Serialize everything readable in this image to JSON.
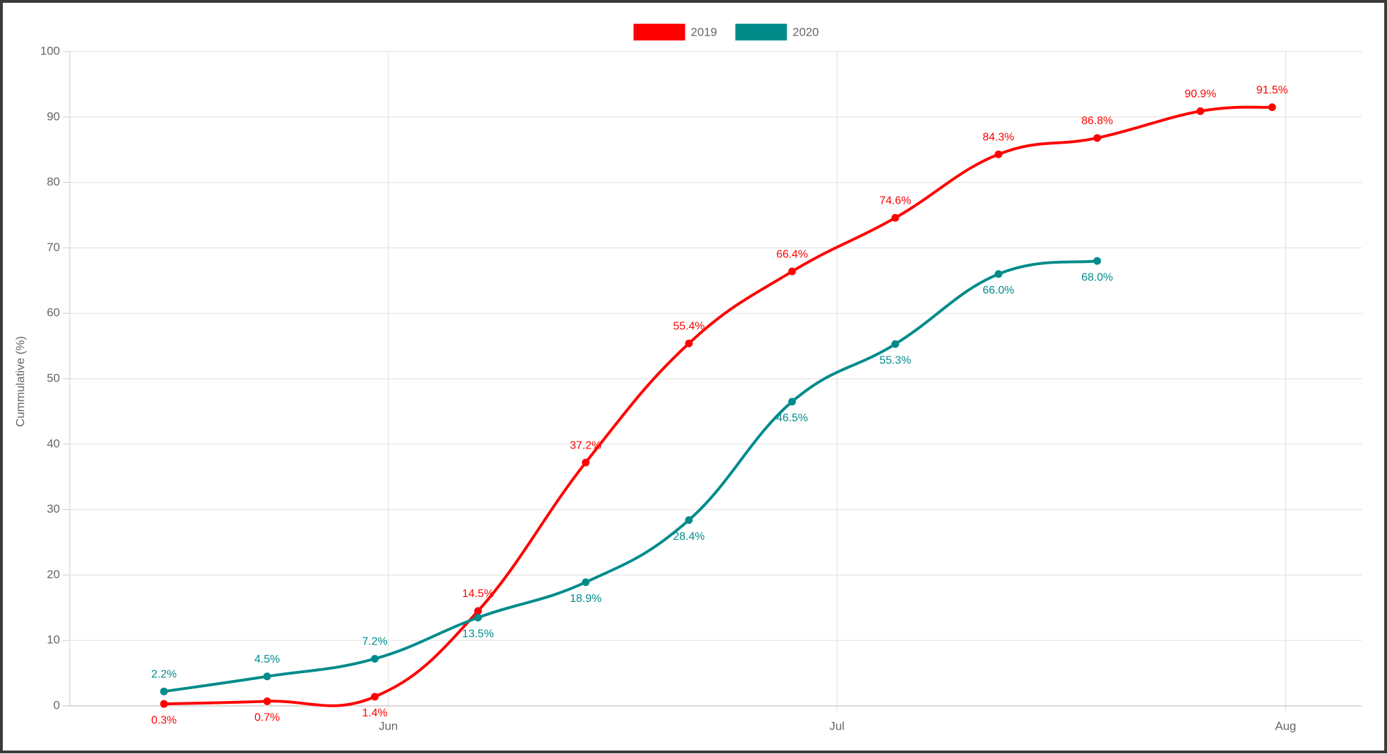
{
  "chart_data": {
    "type": "line",
    "y_label": "Cummulative (%)",
    "x": [
      5.5,
      5.73,
      5.97,
      6.2,
      6.44,
      6.67,
      6.9,
      7.13,
      7.36,
      7.58,
      7.81,
      7.97
    ],
    "xlim": [
      5.29,
      8.17
    ],
    "xticks": [
      {
        "value": 6,
        "label": "Jun"
      },
      {
        "value": 7,
        "label": "Jul"
      },
      {
        "value": 8,
        "label": "Aug"
      }
    ],
    "ylim": [
      0,
      100
    ],
    "yticks": [
      0,
      10,
      20,
      30,
      40,
      50,
      60,
      70,
      80,
      90,
      100
    ],
    "grid": true,
    "legend": "top",
    "series": [
      {
        "name": "2019",
        "color": "#ff0000",
        "values": [
          0.3,
          0.7,
          1.4,
          14.5,
          37.2,
          55.4,
          66.4,
          74.6,
          84.3,
          86.8,
          90.9,
          91.5
        ],
        "value_labels": [
          "0.3%",
          "0.7%",
          "1.4%",
          "14.5%",
          "37.2%",
          "55.4%",
          "66.4%",
          "74.6%",
          "84.3%",
          "86.8%",
          "90.9%",
          "91.5%"
        ]
      },
      {
        "name": "2020",
        "color": "#008b8b",
        "values": [
          2.2,
          4.5,
          7.2,
          13.5,
          18.9,
          28.4,
          46.5,
          55.3,
          66.0,
          68.0,
          null,
          null
        ],
        "value_labels": [
          "2.2%",
          "4.5%",
          "7.2%",
          "13.5%",
          "18.9%",
          "28.4%",
          "46.5%",
          "55.3%",
          "66.0%",
          "68.0%",
          null,
          null
        ]
      }
    ]
  }
}
